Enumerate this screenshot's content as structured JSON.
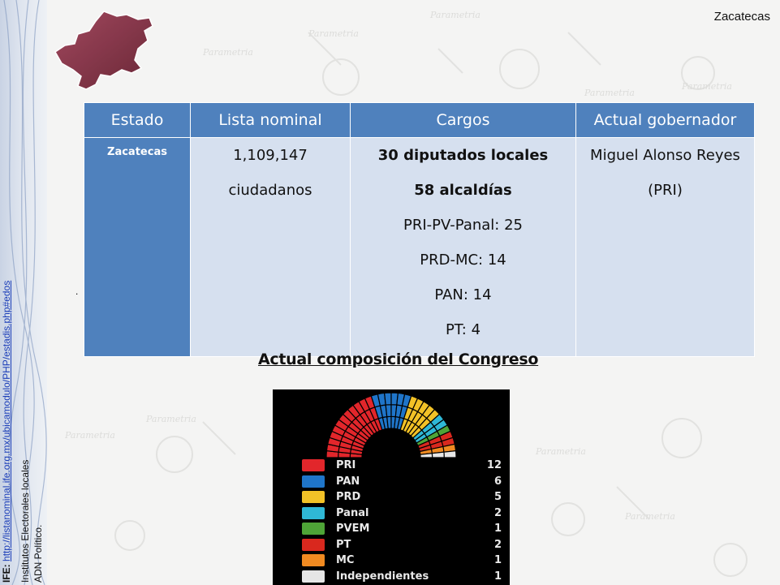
{
  "header": {
    "state": "Zacatecas"
  },
  "sidebar": {
    "ife_label": "IFE:",
    "ife_link": "http://listanominal.ife.org.mx/ubicamodulo/PHP/estadis.php#edos",
    "line2": "Institutos Electorales locales",
    "line3": "ADN Político."
  },
  "table": {
    "headers": [
      "Estado",
      "Lista nominal",
      "Cargos",
      "Actual gobernador"
    ],
    "estado": "Zacatecas",
    "lista_nominal": [
      "1,109,147",
      "ciudadanos"
    ],
    "cargos_bold": [
      "30 diputados locales",
      "58 alcaldías"
    ],
    "cargos": [
      "PRI-PV-Panal: 25",
      "PRD-MC: 14",
      "PAN: 14",
      "PT: 4"
    ],
    "gobernador": [
      "Miguel Alonso Reyes",
      "(PRI)"
    ]
  },
  "dot": ".",
  "congress": {
    "heading": "Actual composición del Congreso",
    "parties": [
      {
        "name": "PRI",
        "seats": "12",
        "color": "#e2262b",
        "icon": "pri-logo-icon"
      },
      {
        "name": "PAN",
        "seats": "6",
        "color": "#1f75c9",
        "icon": "pan-logo-icon"
      },
      {
        "name": "PRD",
        "seats": "5",
        "color": "#f2c227",
        "icon": "prd-logo-icon"
      },
      {
        "name": "Panal",
        "seats": "2",
        "color": "#2fb8d6",
        "icon": "panal-logo-icon"
      },
      {
        "name": "PVEM",
        "seats": "1",
        "color": "#4ea437",
        "icon": "pvem-logo-icon"
      },
      {
        "name": "PT",
        "seats": "2",
        "color": "#d9281e",
        "icon": "pt-logo-icon"
      },
      {
        "name": "MC",
        "seats": "1",
        "color": "#f08a21",
        "icon": "mc-logo-icon"
      },
      {
        "name": "Independientes",
        "seats": "1",
        "color": "#e6e6e6",
        "icon": "independientes-logo-icon"
      }
    ]
  }
}
